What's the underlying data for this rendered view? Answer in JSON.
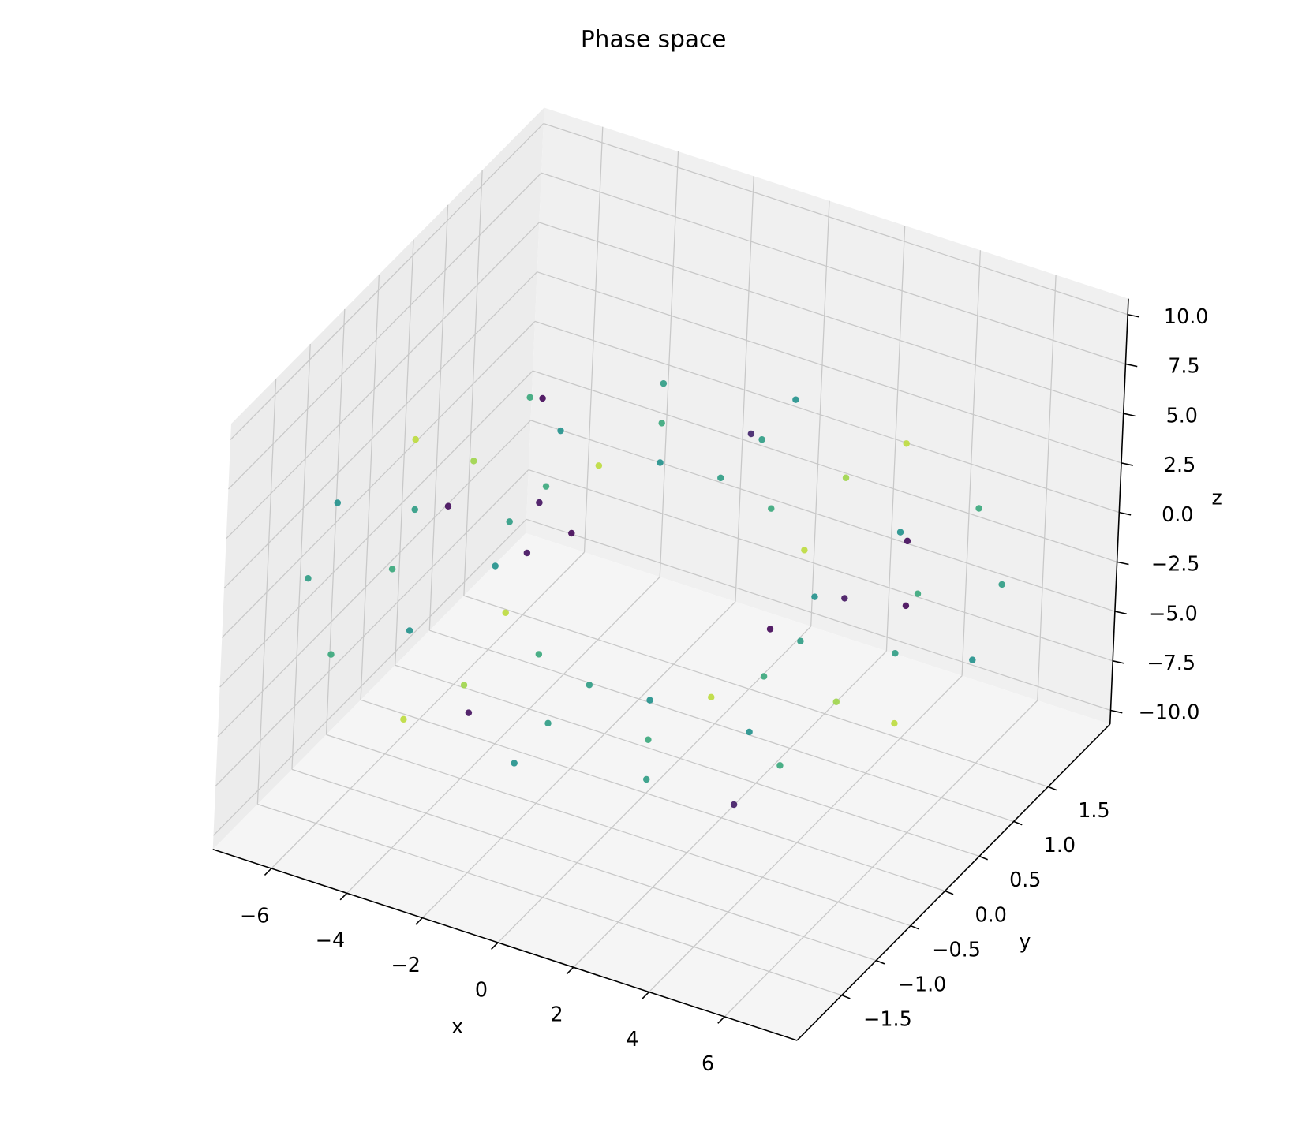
{
  "chart_data": {
    "type": "scatter3d",
    "title": "Phase space",
    "x_label": "x",
    "y_label": "y",
    "z_label": "z",
    "colormap": "viridis",
    "xlim": [
      -7.55,
      7.92
    ],
    "ylim": [
      -2.15,
      2.4
    ],
    "zlim": [
      -10.7,
      10.8
    ],
    "xticks": [
      {
        "value": -6,
        "label": "−6"
      },
      {
        "value": -4,
        "label": "−4"
      },
      {
        "value": -2,
        "label": "−2"
      },
      0,
      2,
      4,
      6
    ],
    "yticks": [
      {
        "value": -1.5,
        "label": "−1.5"
      },
      {
        "value": -1.0,
        "label": "−1.0"
      },
      {
        "value": -0.5,
        "label": "−0.5"
      },
      {
        "value": 0,
        "label": "0.0"
      },
      0.5,
      {
        "value": 1.0,
        "label": "1.0"
      },
      1.5
    ],
    "zticks": [
      {
        "value": -10,
        "label": "−10.0"
      },
      {
        "value": -7.5,
        "label": "−7.5"
      },
      {
        "value": -5,
        "label": "−5.0"
      },
      {
        "value": -2.5,
        "label": "−2.5"
      },
      {
        "value": 0,
        "label": "0.0"
      },
      2.5,
      {
        "value": 5,
        "label": "5.0"
      },
      7.5,
      {
        "value": 10,
        "label": "10.0"
      }
    ],
    "grid": true,
    "x": [
      7,
      6.47,
      4.95,
      2.68,
      0,
      -2.68,
      -4.95,
      -6.47,
      -7,
      -6.47,
      -4.95,
      -2.68,
      0,
      2.68,
      4.95,
      6.47,
      5.5,
      5.08,
      3.89,
      2.1,
      0,
      -2.1,
      -3.89,
      -5.08,
      -5.5,
      -5.08,
      -3.89,
      -2.1,
      0,
      2.1,
      3.89,
      5.08,
      3.5,
      3.23,
      2.47,
      1.34,
      0,
      -1.34,
      -2.47,
      -3.23,
      -3.5,
      -3.23,
      -2.47,
      -1.34,
      0,
      1.34,
      2.47,
      3.23,
      -4,
      -2,
      1,
      3,
      5,
      -5,
      0,
      2,
      -3,
      4,
      6,
      -6
    ],
    "y": [
      1.2,
      1.11,
      0.85,
      0.46,
      0,
      -0.46,
      -0.85,
      -1.11,
      -1.2,
      -1.11,
      -0.85,
      -0.46,
      0,
      0.46,
      0.85,
      1.11,
      0.8,
      0.74,
      0.57,
      0.31,
      0,
      -0.31,
      -0.57,
      -0.74,
      -0.8,
      -0.74,
      -0.57,
      -0.31,
      0,
      0.31,
      0.57,
      0.74,
      0.4,
      0.37,
      0.28,
      0.15,
      0,
      -0.15,
      -0.28,
      -0.37,
      -0.4,
      -0.37,
      -0.28,
      -0.15,
      0,
      0.15,
      0.28,
      0.37,
      0.5,
      -0.8,
      1.2,
      -0.4,
      0.9,
      1.1,
      -1.3,
      0.2,
      -1.0,
      1.5,
      -0.6,
      0.3
    ],
    "z": [
      0,
      3.83,
      7.07,
      9.24,
      10,
      9.24,
      7.07,
      3.83,
      0,
      -3.83,
      -7.07,
      -9.24,
      -10,
      -9.24,
      -7.07,
      -3.83,
      0,
      3.06,
      5.66,
      7.39,
      8,
      7.39,
      5.66,
      3.06,
      0,
      -3.06,
      -5.66,
      -7.39,
      -8,
      -7.39,
      -5.66,
      -3.06,
      0,
      2.3,
      4.24,
      5.54,
      6,
      5.54,
      4.24,
      2.3,
      0,
      -2.3,
      -4.24,
      -5.54,
      -6,
      -5.54,
      -4.24,
      -2.3,
      5,
      3,
      -6,
      -8,
      2,
      -3,
      7,
      8,
      -5,
      -4,
      5,
      -1
    ],
    "c": [
      0.55,
      0.6,
      0.9,
      0.5,
      0.55,
      0.6,
      0.9,
      0.5,
      0.55,
      0.6,
      0.9,
      0.5,
      0.55,
      0.6,
      0.9,
      0.5,
      0.6,
      0.5,
      0.85,
      0.55,
      0.6,
      0.5,
      0.85,
      0.55,
      0.6,
      0.5,
      0.85,
      0.55,
      0.6,
      0.5,
      0.85,
      0.55,
      0.5,
      0.9,
      0.6,
      0.55,
      0.5,
      0.9,
      0.6,
      0.55,
      0.5,
      0.9,
      0.6,
      0.55,
      0.5,
      0.9,
      0.6,
      0.55,
      0.02,
      0.05,
      0.02,
      0.08,
      0.03,
      0.05,
      0.02,
      0.1,
      0.04,
      0.02,
      0.06,
      0.03
    ]
  }
}
